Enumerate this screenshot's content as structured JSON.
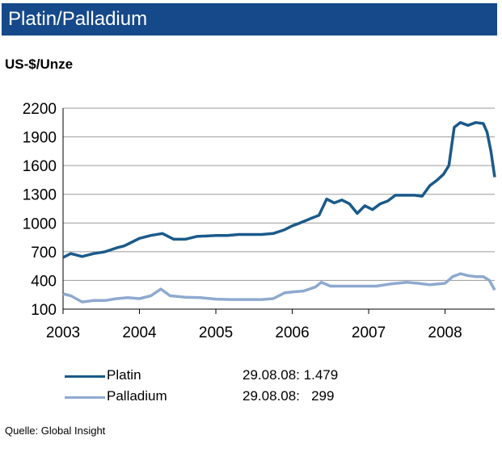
{
  "header": {
    "title": "Platin/Palladium"
  },
  "chart_data": {
    "type": "line",
    "ylabel": "US-$/Unze",
    "ylim": [
      100,
      2200
    ],
    "xlim": [
      2003,
      2008.65
    ],
    "y_ticks": [
      2200,
      1900,
      1600,
      1300,
      1000,
      700,
      400,
      100
    ],
    "x_ticks": [
      2003,
      2004,
      2005,
      2006,
      2007,
      2008
    ],
    "series": [
      {
        "name": "Platin",
        "color": "#1a5a8a",
        "x": [
          2003.0,
          2003.1,
          2003.25,
          2003.4,
          2003.55,
          2003.7,
          2003.8,
          2003.9,
          2004.0,
          2004.15,
          2004.3,
          2004.45,
          2004.6,
          2004.75,
          2004.9,
          2005.0,
          2005.15,
          2005.3,
          2005.45,
          2005.6,
          2005.75,
          2005.9,
          2006.0,
          2006.1,
          2006.25,
          2006.35,
          2006.45,
          2006.55,
          2006.65,
          2006.75,
          2006.85,
          2006.95,
          2007.05,
          2007.15,
          2007.25,
          2007.35,
          2007.5,
          2007.6,
          2007.7,
          2007.8,
          2007.9,
          2007.98,
          2008.05,
          2008.12,
          2008.2,
          2008.3,
          2008.4,
          2008.5,
          2008.55,
          2008.6,
          2008.65
        ],
        "y": [
          640,
          680,
          650,
          680,
          700,
          740,
          760,
          800,
          840,
          870,
          890,
          830,
          830,
          860,
          865,
          870,
          870,
          880,
          880,
          880,
          890,
          930,
          970,
          1000,
          1050,
          1080,
          1250,
          1210,
          1240,
          1200,
          1100,
          1180,
          1140,
          1200,
          1230,
          1290,
          1290,
          1290,
          1280,
          1390,
          1450,
          1510,
          1600,
          2000,
          2050,
          2020,
          2050,
          2040,
          1950,
          1750,
          1479
        ]
      },
      {
        "name": "Palladium",
        "color": "#8ea9cf",
        "x": [
          2003.0,
          2003.1,
          2003.25,
          2003.4,
          2003.55,
          2003.7,
          2003.85,
          2004.0,
          2004.15,
          2004.28,
          2004.4,
          2004.6,
          2004.8,
          2005.0,
          2005.2,
          2005.4,
          2005.6,
          2005.75,
          2005.9,
          2006.0,
          2006.15,
          2006.3,
          2006.38,
          2006.5,
          2006.7,
          2006.9,
          2007.1,
          2007.3,
          2007.5,
          2007.65,
          2007.8,
          2008.0,
          2008.1,
          2008.2,
          2008.3,
          2008.4,
          2008.5,
          2008.58,
          2008.65
        ],
        "y": [
          260,
          240,
          175,
          190,
          190,
          210,
          220,
          210,
          240,
          310,
          240,
          225,
          220,
          205,
          200,
          200,
          200,
          210,
          270,
          280,
          290,
          330,
          380,
          340,
          340,
          340,
          340,
          365,
          380,
          370,
          355,
          370,
          440,
          470,
          450,
          440,
          440,
          400,
          299
        ]
      }
    ]
  },
  "legend": [
    {
      "label": "Platin",
      "date": "29.08.08:",
      "value": "1.479",
      "color": "#1a5a8a"
    },
    {
      "label": "Palladium",
      "date": "29.08.08:",
      "value": "299",
      "color": "#8ea9cf"
    }
  ],
  "source": "Quelle: Global Insight"
}
